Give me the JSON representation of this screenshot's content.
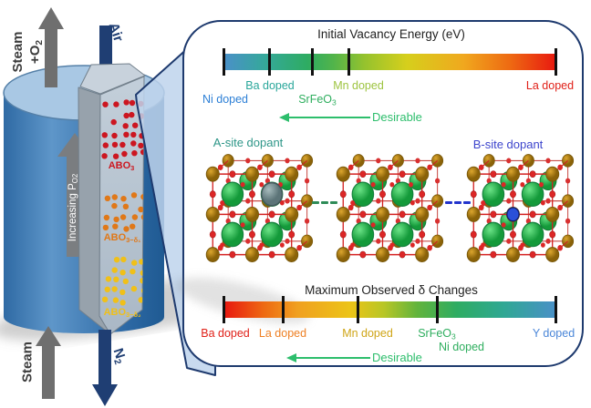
{
  "reactor": {
    "steam_top": "Steam",
    "o2": {
      "base": "+O",
      "sub": "2"
    },
    "air_label": "Air",
    "increasing": {
      "base": "Increasing P",
      "sub": "O2"
    },
    "layers": [
      {
        "base": "ABO",
        "sub": "3",
        "color": "#cc1820"
      },
      {
        "base": "ABO",
        "sub": "3−δ₁",
        "color": "#e07818"
      },
      {
        "base": "ABO",
        "sub": "3−δ₂",
        "color": "#f0c018"
      }
    ],
    "steam_bottom": "Steam",
    "n2": {
      "base": "N",
      "sub": "2"
    }
  },
  "panel": {
    "border_color": "#1e3a6e",
    "top_scale": {
      "title": "Initial Vacancy Energy (eV)",
      "labels": [
        {
          "text": "Ni doped",
          "color": "#2c7fd6"
        },
        {
          "text": "Ba doped",
          "color": "#2aa79b"
        },
        {
          "text": "SrFeO",
          "sub": "3",
          "color": "#2eae5e"
        },
        {
          "text": "Mn doped",
          "color": "#9ec441"
        },
        {
          "text": "La doped",
          "color": "#e02018"
        }
      ],
      "desirable": "Desirable"
    },
    "crystals": {
      "a_site": "A-site dopant",
      "a_site_color": "#2e9688",
      "b_site": "B-site dopant",
      "b_site_color": "#3c44cc",
      "connector_green": "#2e8b57",
      "connector_blue": "#2233cc"
    },
    "bottom_scale": {
      "title": "Maximum Observed δ Changes",
      "labels": [
        {
          "text": "Ba doped",
          "color": "#e02018"
        },
        {
          "text": "La doped",
          "color": "#ee8024"
        },
        {
          "text": "Mn doped",
          "color": "#cfa517"
        },
        {
          "text": "SrFeO",
          "sub": "3",
          "color": "#2eae5e"
        },
        {
          "text": "Ni doped",
          "color": "#2eae5e"
        },
        {
          "text": "Y doped",
          "color": "#4a86d8"
        }
      ],
      "desirable": "Desirable"
    },
    "desirable_color": "#2dbe6c"
  }
}
